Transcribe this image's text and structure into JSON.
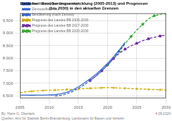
{
  "chart_data": {
    "type": "line",
    "title": "Bestemer: Bevölkerungsentwicklung (2005-2013) und Prognosen\n(bis 2030) in den aktuellen Grenzen",
    "xlim": [
      2005,
      2030
    ],
    "xticks": [
      2005,
      2010,
      2015,
      2020,
      2025,
      2030
    ],
    "ylim": [
      6400,
      9800
    ],
    "yticks": [
      {
        "value": 6500,
        "label": "6.500"
      },
      {
        "value": 7000,
        "label": "7.000"
      },
      {
        "value": 7500,
        "label": "7.500"
      },
      {
        "value": 8000,
        "label": "8.000"
      },
      {
        "value": 8500,
        "label": "8.500"
      },
      {
        "value": 9000,
        "label": "9.000"
      },
      {
        "value": 9500,
        "label": "9.500"
      }
    ],
    "grid": true,
    "legend": "upper left",
    "series": [
      {
        "name": "Bevölkerung (vor Zensus neu)",
        "color": "#3366cc",
        "line_style": "solid",
        "x": [
          2005,
          2006,
          2007,
          2008,
          2009,
          2010,
          2011,
          2012,
          2013,
          2014,
          2015,
          2016,
          2017,
          2018,
          2019,
          2020,
          2021,
          2022,
          2023
        ],
        "values": [
          6530,
          6530,
          6525,
          6530,
          6530,
          6535,
          6545,
          6580,
          6640,
          6730,
          6860,
          7010,
          7180,
          7360,
          7570,
          7800,
          8060,
          8340,
          8640
        ]
      },
      {
        "name": "Zensuseffekt neu",
        "color": "#3366cc",
        "line_style": "dotted",
        "x": [
          2010,
          2011
        ],
        "values": [
          6535,
          6490
        ]
      },
      {
        "name": "Bevölkerung (nach Zensus)",
        "color": "#3366cc",
        "line_style": "dashed",
        "x": [
          2011,
          2012,
          2013,
          2014,
          2015,
          2016,
          2017,
          2018,
          2019,
          2020,
          2021,
          2022,
          2023
        ],
        "values": [
          6490,
          6520,
          6580,
          6670,
          6790,
          6940,
          7110,
          7290,
          7500,
          7730,
          7990,
          8280,
          8590
        ]
      },
      {
        "name": "Prognose des Landes BB 2005-2030",
        "color": "#ccaa00",
        "line_style": "dashed",
        "marker": "plus",
        "x": [
          2005,
          2006,
          2007,
          2008,
          2009,
          2010,
          2011,
          2012,
          2013,
          2014,
          2015,
          2016,
          2017,
          2018,
          2019,
          2020,
          2021,
          2022,
          2023,
          2024,
          2025,
          2026,
          2027,
          2028,
          2029,
          2030
        ],
        "values": [
          6620,
          6660,
          6680,
          6700,
          6710,
          6720,
          6730,
          6740,
          6750,
          6760,
          6770,
          6790,
          6800,
          6810,
          6820,
          6830,
          6820,
          6810,
          6800,
          6790,
          6780,
          6770,
          6760,
          6750,
          6740,
          6730
        ]
      },
      {
        "name": "Prognose des Landes BB 2017-2030",
        "color": "#7030a0",
        "line_style": "dashed",
        "marker": "square",
        "x": [
          2017,
          2018,
          2019,
          2020,
          2021,
          2022,
          2023,
          2024,
          2025,
          2026,
          2027,
          2028,
          2029,
          2030
        ],
        "values": [
          7110,
          7290,
          7500,
          7730,
          7990,
          8200,
          8370,
          8500,
          8600,
          8700,
          8780,
          8840,
          8890,
          8930
        ]
      },
      {
        "name": "Prognose des Landes BB 2020-2030",
        "color": "#33aa33",
        "line_style": "dashed",
        "marker": "diamond",
        "x": [
          2020,
          2021,
          2022,
          2023,
          2024,
          2025,
          2026,
          2027,
          2028,
          2029,
          2030
        ],
        "values": [
          7730,
          7990,
          8280,
          8590,
          8870,
          9130,
          9360,
          9580,
          9700,
          9760,
          9790
        ]
      }
    ],
    "annotations": [
      "By: Hans G. Oberlack",
      "Quellen: Amt für Statistik Berlin-Brandenburg, Landesamt für Bauen und Verkehr",
      "4.08.2024"
    ]
  }
}
